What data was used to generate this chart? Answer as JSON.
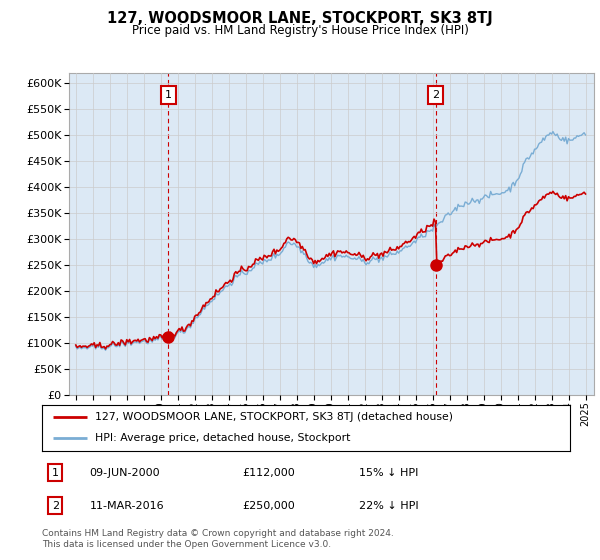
{
  "title": "127, WOODSMOOR LANE, STOCKPORT, SK3 8TJ",
  "subtitle": "Price paid vs. HM Land Registry's House Price Index (HPI)",
  "property_label": "127, WOODSMOOR LANE, STOCKPORT, SK3 8TJ (detached house)",
  "hpi_label": "HPI: Average price, detached house, Stockport",
  "footer": "Contains HM Land Registry data © Crown copyright and database right 2024.\nThis data is licensed under the Open Government Licence v3.0.",
  "property_color": "#cc0000",
  "hpi_color": "#7aadd4",
  "hpi_fill_color": "#dce9f5",
  "vline_color": "#cc0000",
  "box_edge_color": "#cc0000",
  "bg_color": "#ffffff",
  "grid_color": "#cccccc",
  "ylim": [
    0,
    620000
  ],
  "yticks": [
    0,
    50000,
    100000,
    150000,
    200000,
    250000,
    300000,
    350000,
    400000,
    450000,
    500000,
    550000,
    600000
  ],
  "xlim_start": 1994.6,
  "xlim_end": 2025.5,
  "marker1_x": 2000.44,
  "marker1_y": 112000,
  "marker2_x": 2016.19,
  "marker2_y": 250000,
  "vline1_x": 2000.44,
  "vline2_x": 2016.19,
  "tx1_date": "09-JUN-2000",
  "tx1_price": "£112,000",
  "tx1_hpi": "15% ↓ HPI",
  "tx2_date": "11-MAR-2016",
  "tx2_price": "£250,000",
  "tx2_hpi": "22% ↓ HPI"
}
